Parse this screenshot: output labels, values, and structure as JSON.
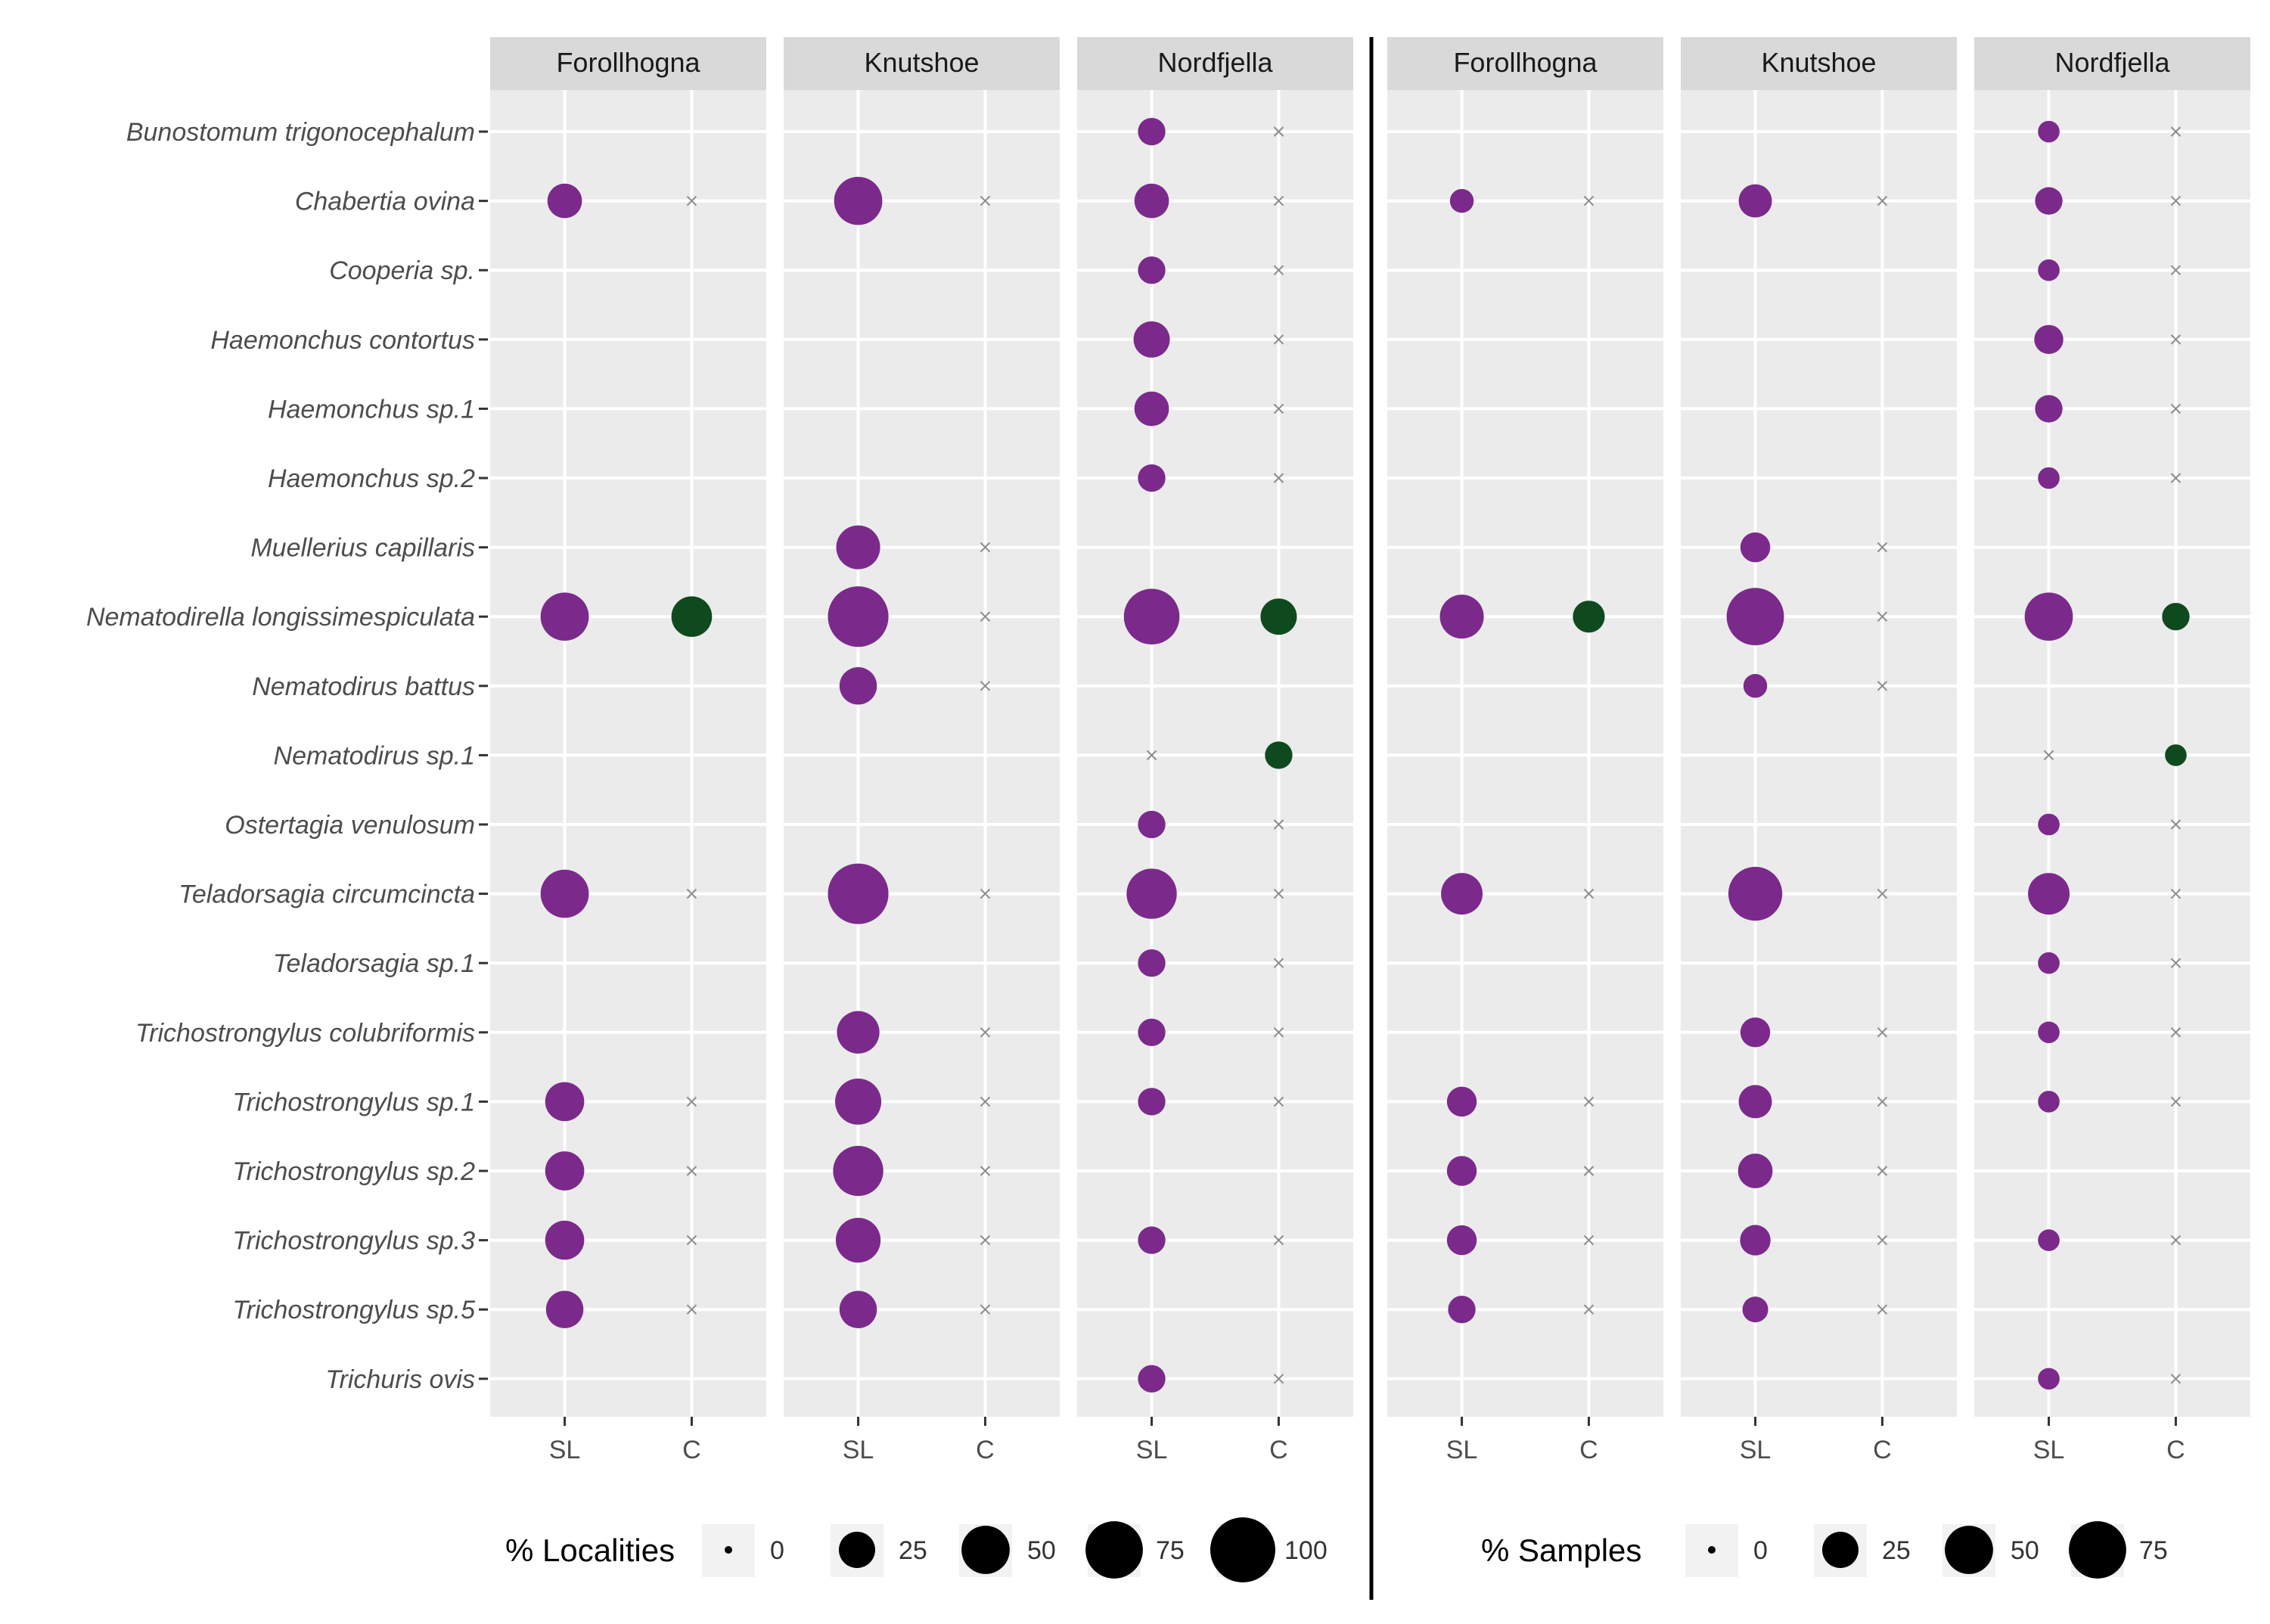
{
  "chart_data": [
    {
      "type": "scatter",
      "title": "",
      "xlabel": "",
      "ylabel": "",
      "facets": [
        "Forollhogna",
        "Knutshoe",
        "Nordfjella"
      ],
      "x_categories": [
        "SL",
        "C"
      ],
      "species": [
        "Bunostomum trigonocephalum",
        "Chabertia ovina",
        "Cooperia sp.",
        "Haemonchus contortus",
        "Haemonchus sp.1",
        "Haemonchus sp.2",
        "Muellerius capillaris",
        "Nematodirella longissimespiculata",
        "Nematodirus battus",
        "Nematodirus sp.1",
        "Ostertagia venulosum",
        "Teladorsagia circumcincta",
        "Teladorsagia sp.1",
        "Trichostrongylus colubriformis",
        "Trichostrongylus sp.1",
        "Trichostrongylus sp.2",
        "Trichostrongylus sp.3",
        "Trichostrongylus sp.5",
        "Trichuris ovis"
      ],
      "size_legend": {
        "title": "% Localities",
        "breaks": [
          0,
          25,
          50,
          75,
          100
        ]
      },
      "colors": {
        "SL": "#7b2a8c",
        "C": "#0f4a1e",
        "absent": "#8c8c8c"
      },
      "values": {
        "Forollhogna": {
          "SL": [
            null,
            22,
            null,
            null,
            null,
            null,
            null,
            50,
            null,
            null,
            null,
            50,
            null,
            null,
            30,
            30,
            30,
            27,
            null
          ],
          "C": [
            null,
            0,
            null,
            null,
            null,
            null,
            null,
            33,
            null,
            null,
            null,
            0,
            null,
            null,
            0,
            0,
            0,
            0,
            null
          ]
        },
        "Knutshoe": {
          "SL": [
            null,
            50,
            null,
            null,
            null,
            null,
            40,
            85,
            27,
            null,
            null,
            85,
            null,
            37,
            45,
            55,
            42,
            27,
            null
          ],
          "C": [
            null,
            0,
            null,
            null,
            null,
            null,
            0,
            0,
            0,
            null,
            null,
            0,
            null,
            0,
            0,
            0,
            0,
            0,
            null
          ]
        },
        "Nordfjella": {
          "SL": [
            12,
            22,
            12,
            25,
            22,
            12,
            null,
            70,
            null,
            0,
            12,
            55,
            12,
            12,
            12,
            null,
            12,
            null,
            12
          ],
          "C": [
            0,
            0,
            0,
            0,
            0,
            0,
            null,
            25,
            null,
            12,
            0,
            0,
            0,
            0,
            0,
            null,
            0,
            null,
            0
          ]
        }
      }
    },
    {
      "type": "scatter",
      "title": "",
      "xlabel": "",
      "ylabel": "",
      "facets": [
        "Forollhogna",
        "Knutshoe",
        "Nordfjella"
      ],
      "x_categories": [
        "SL",
        "C"
      ],
      "species": [
        "Bunostomum trigonocephalum",
        "Chabertia ovina",
        "Cooperia sp.",
        "Haemonchus contortus",
        "Haemonchus sp.1",
        "Haemonchus sp.2",
        "Muellerius capillaris",
        "Nematodirella longissimespiculata",
        "Nematodirus battus",
        "Nematodirus sp.1",
        "Ostertagia venulosum",
        "Teladorsagia circumcincta",
        "Teladorsagia sp.1",
        "Trichostrongylus colubriformis",
        "Trichostrongylus sp.1",
        "Trichostrongylus sp.2",
        "Trichostrongylus sp.3",
        "Trichostrongylus sp.5",
        "Trichuris ovis"
      ],
      "size_legend": {
        "title": "% Samples",
        "breaks": [
          0,
          25,
          50,
          75
        ]
      },
      "colors": {
        "SL": "#7b2a8c",
        "C": "#0f4a1e",
        "absent": "#8c8c8c"
      },
      "values": {
        "Forollhogna": {
          "SL": [
            null,
            8,
            null,
            null,
            null,
            null,
            null,
            40,
            null,
            null,
            null,
            35,
            null,
            null,
            15,
            15,
            15,
            12,
            null
          ],
          "C": [
            null,
            0,
            null,
            null,
            null,
            null,
            null,
            18,
            null,
            null,
            null,
            0,
            null,
            null,
            0,
            0,
            0,
            0,
            null
          ]
        },
        "Knutshoe": {
          "SL": [
            null,
            20,
            null,
            null,
            null,
            null,
            15,
            75,
            8,
            null,
            null,
            65,
            null,
            15,
            20,
            22,
            16,
            10,
            null
          ],
          "C": [
            null,
            0,
            null,
            null,
            null,
            null,
            0,
            0,
            0,
            null,
            null,
            0,
            null,
            0,
            0,
            0,
            0,
            0,
            null
          ]
        },
        "Nordfjella": {
          "SL": [
            6,
            12,
            6,
            14,
            12,
            6,
            null,
            50,
            null,
            0,
            6,
            35,
            6,
            6,
            6,
            null,
            6,
            null,
            6
          ],
          "C": [
            0,
            0,
            0,
            0,
            0,
            0,
            null,
            12,
            null,
            6,
            0,
            0,
            0,
            0,
            0,
            null,
            0,
            null,
            0
          ]
        }
      }
    }
  ]
}
